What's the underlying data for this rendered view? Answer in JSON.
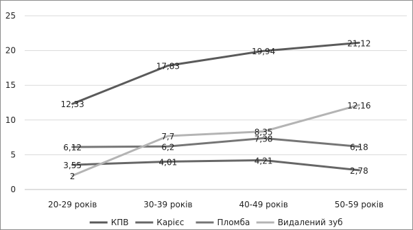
{
  "chart_data": {
    "type": "line",
    "categories": [
      "20-29 років",
      "30-39 років",
      "40-49 років",
      "50-59 років"
    ],
    "series": [
      {
        "name": "КПВ",
        "values": [
          12.33,
          17.83,
          19.94,
          21.12
        ],
        "labels": [
          "12,33",
          "17,83",
          "19,94",
          "21,12"
        ],
        "color": "#5a5a5a"
      },
      {
        "name": "Карієс",
        "values": [
          3.55,
          4.01,
          4.21,
          2.78
        ],
        "labels": [
          "3,55",
          "4,01",
          "4,21",
          "2,78"
        ],
        "color": "#666666"
      },
      {
        "name": "Пломба",
        "values": [
          6.12,
          6.2,
          7.38,
          6.18
        ],
        "labels": [
          "6,12",
          "6,2",
          "7,38",
          "6,18"
        ],
        "color": "#757575"
      },
      {
        "name": "Видалений зуб",
        "values": [
          2,
          7.7,
          8.35,
          12.16
        ],
        "labels": [
          "2",
          "7,7",
          "8,35",
          "12,16"
        ],
        "color": "#b4b4b4"
      }
    ],
    "y_ticks": [
      "0",
      "5",
      "10",
      "15",
      "20",
      "25"
    ],
    "ylim": [
      0,
      25
    ],
    "grid": true,
    "legend_position": "bottom"
  }
}
